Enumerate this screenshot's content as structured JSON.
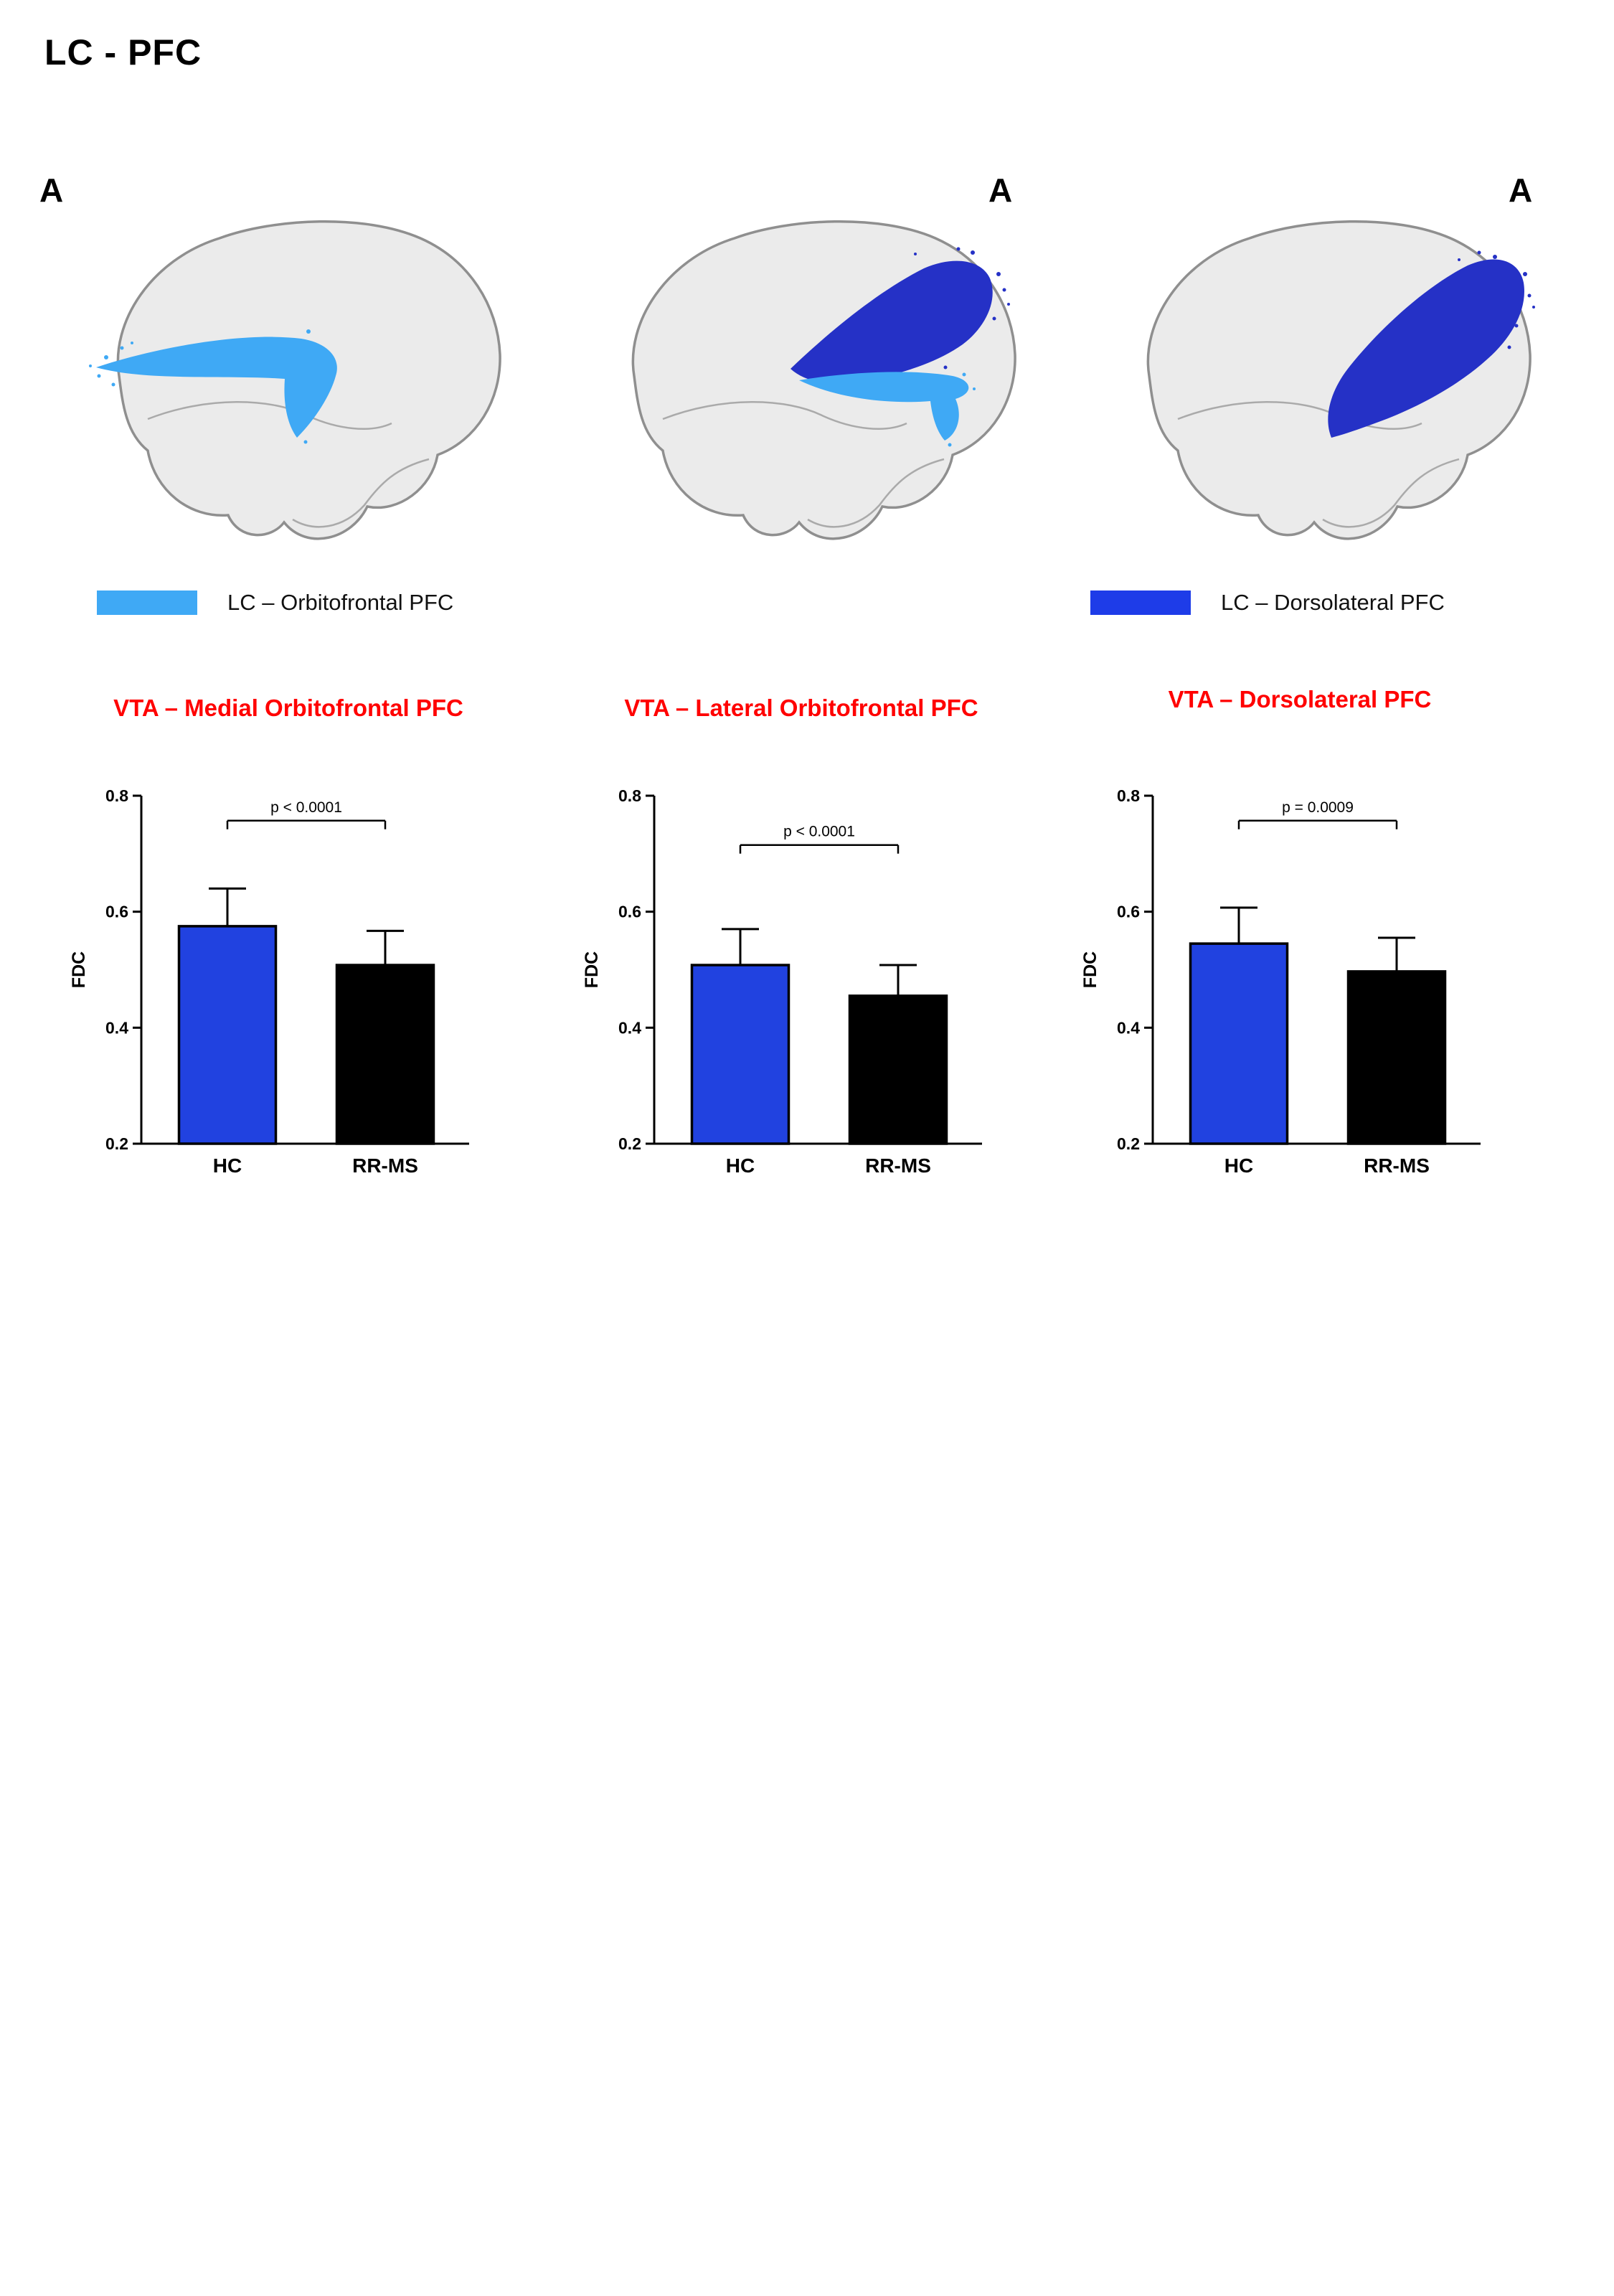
{
  "figure": {
    "title": "LC - PFC"
  },
  "panels": [
    {
      "label": "A"
    },
    {
      "label": "A"
    },
    {
      "label": "A"
    }
  ],
  "legends": [
    {
      "label": "LC – Orbitofrontal PFC",
      "color": "#3FA9F5"
    },
    {
      "label": "LC – Dorsolateral PFC",
      "color": "#1E3CE8"
    }
  ],
  "colors": {
    "orbitofrontal_tract": "#3FA9F5",
    "dorsolateral_tract": "#2531C6",
    "hc_bar": "#2142E0",
    "rrms_bar": "#000000",
    "title_red": "#FF0000",
    "brain_fill": "#EBEBEB",
    "brain_outline": "#8F8F8F"
  },
  "chart_data": [
    {
      "type": "bar",
      "title": "VTA – Medial Orbitofrontal PFC",
      "ylabel": "FDC",
      "xlabel": "",
      "ylim": [
        0.2,
        0.8
      ],
      "yticks": [
        0.2,
        0.4,
        0.6,
        0.8
      ],
      "grid": false,
      "categories": [
        "HC",
        "RR-MS"
      ],
      "values": [
        0.575,
        0.508
      ],
      "error_top": [
        0.64,
        0.567
      ],
      "significance": {
        "label": "p < 0.0001",
        "height": 0.757
      }
    },
    {
      "type": "bar",
      "title": "VTA – Lateral Orbitofrontal PFC",
      "ylabel": "FDC",
      "xlabel": "",
      "ylim": [
        0.2,
        0.8
      ],
      "yticks": [
        0.2,
        0.4,
        0.6,
        0.8
      ],
      "grid": false,
      "categories": [
        "HC",
        "RR-MS"
      ],
      "values": [
        0.508,
        0.455
      ],
      "error_top": [
        0.57,
        0.508
      ],
      "significance": {
        "label": "p < 0.0001",
        "height": 0.715
      }
    },
    {
      "type": "bar",
      "title": "VTA – Dorsolateral PFC",
      "ylabel": "FDC",
      "xlabel": "",
      "ylim": [
        0.2,
        0.8
      ],
      "yticks": [
        0.2,
        0.4,
        0.6,
        0.8
      ],
      "grid": false,
      "categories": [
        "HC",
        "RR-MS"
      ],
      "values": [
        0.545,
        0.497
      ],
      "error_top": [
        0.607,
        0.555
      ],
      "significance": {
        "label": "p = 0.0009",
        "height": 0.757
      }
    }
  ]
}
